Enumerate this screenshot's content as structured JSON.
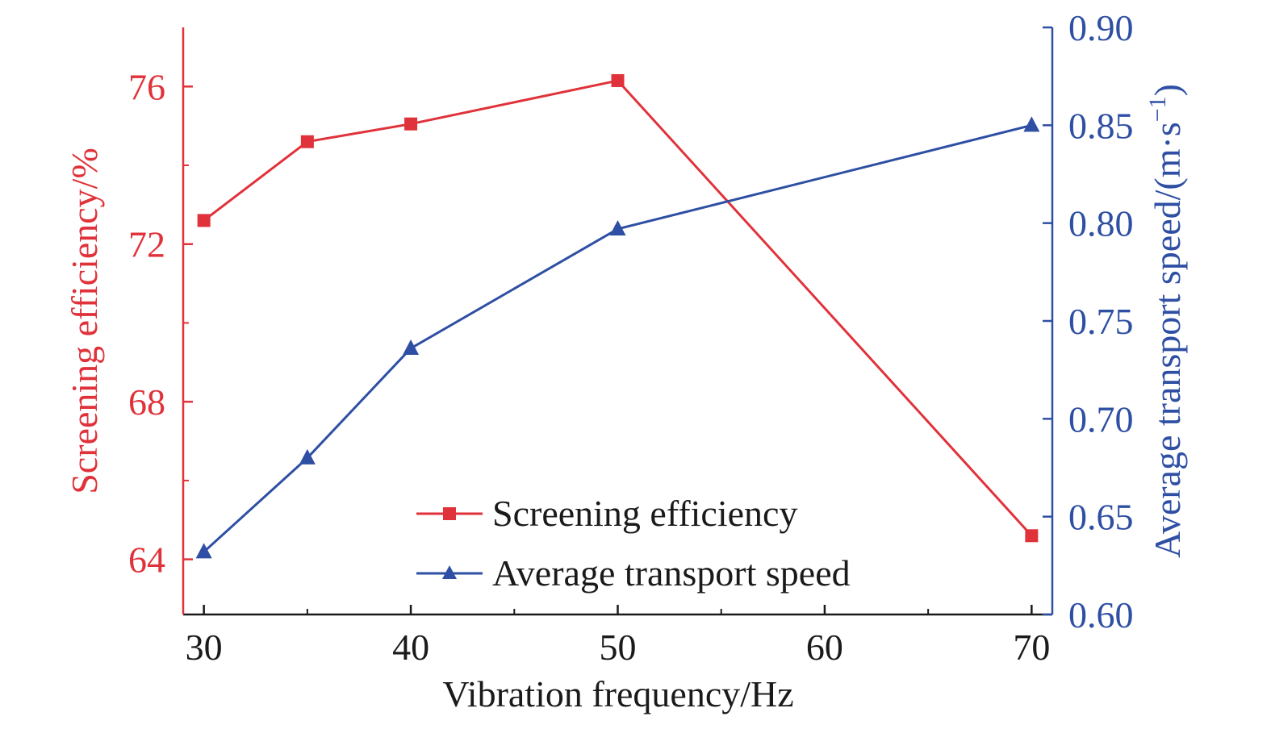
{
  "colors": {
    "left_axis": "#e0323a",
    "right_axis": "#2e4fa3",
    "bottom_axis": "#1a1a1a"
  },
  "chart_data": {
    "type": "line",
    "xlabel": "Vibration frequency/Hz",
    "x_ticks": [
      "30",
      "40",
      "50",
      "60",
      "70"
    ],
    "xlim": [
      29,
      71
    ],
    "y_left": {
      "label": "Screening efficiency/%",
      "ylim": [
        62.6,
        77.5
      ],
      "ticks": [
        "64",
        "68",
        "72",
        "76"
      ],
      "tick_values": [
        64,
        68,
        72,
        76
      ]
    },
    "y_right": {
      "label_main": "Average transport speed/(m·s",
      "label_sup": "−1",
      "label_close": ")",
      "ylim": [
        0.6,
        0.9
      ],
      "ticks": [
        "0.60",
        "0.65",
        "0.70",
        "0.75",
        "0.80",
        "0.85",
        "0.90"
      ],
      "tick_values": [
        0.6,
        0.65,
        0.7,
        0.75,
        0.8,
        0.85,
        0.9
      ]
    },
    "series": [
      {
        "name": "Screening efficiency",
        "axis": "left",
        "marker": "square",
        "color": "#e0323a",
        "x": [
          30,
          35,
          40,
          50,
          70
        ],
        "y": [
          72.6,
          74.6,
          75.05,
          76.15,
          64.6
        ]
      },
      {
        "name": "Average transport speed",
        "axis": "right",
        "marker": "triangle",
        "color": "#2e4fa3",
        "x": [
          30,
          35,
          40,
          50,
          70
        ],
        "y": [
          0.632,
          0.68,
          0.736,
          0.797,
          0.85
        ]
      }
    ],
    "legend_position": "bottom-center",
    "grid": false
  }
}
